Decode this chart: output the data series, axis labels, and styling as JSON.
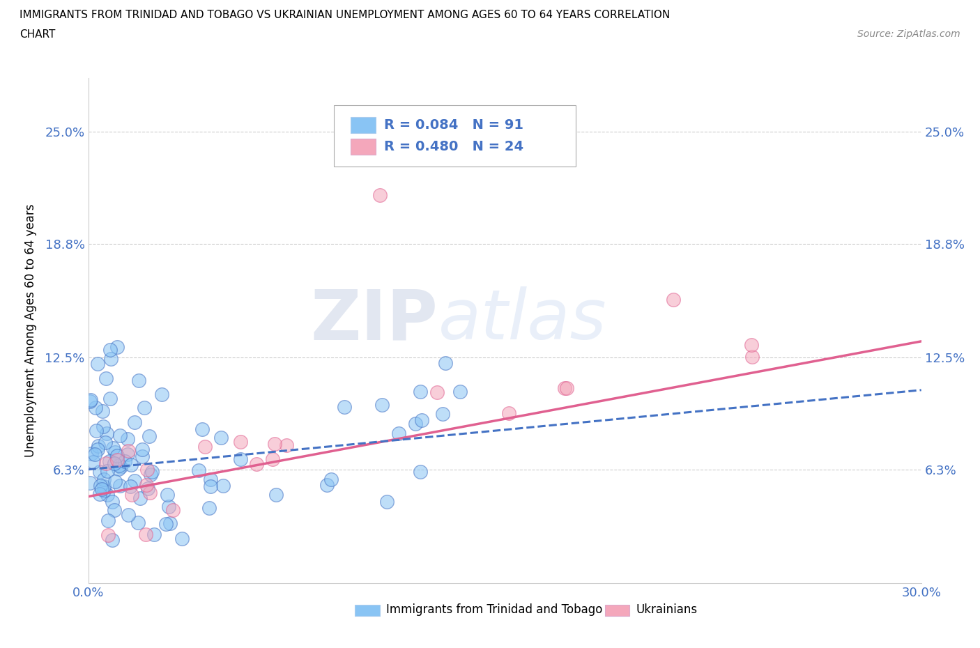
{
  "title_line1": "IMMIGRANTS FROM TRINIDAD AND TOBAGO VS UKRAINIAN UNEMPLOYMENT AMONG AGES 60 TO 64 YEARS CORRELATION",
  "title_line2": "CHART",
  "source": "Source: ZipAtlas.com",
  "ylabel": "Unemployment Among Ages 60 to 64 years",
  "xlim": [
    0.0,
    0.3
  ],
  "ylim": [
    0.0,
    0.28
  ],
  "ytick_positions": [
    0.063,
    0.125,
    0.188,
    0.25
  ],
  "ytick_labels": [
    "6.3%",
    "12.5%",
    "18.8%",
    "25.0%"
  ],
  "r_blue": 0.084,
  "n_blue": 91,
  "r_pink": 0.48,
  "n_pink": 24,
  "color_blue": "#89C4F4",
  "color_pink": "#F4A7BB",
  "color_line_blue": "#4472C4",
  "color_line_pink": "#E06090",
  "color_text_blue": "#4472C4",
  "legend_label_blue": "Immigrants from Trinidad and Tobago",
  "legend_label_pink": "Ukrainians",
  "watermark_zip": "ZIP",
  "watermark_atlas": "atlas",
  "background_color": "#FFFFFF",
  "grid_color": "#CCCCCC",
  "blue_trend_start_y": 0.063,
  "blue_trend_end_y": 0.107,
  "pink_trend_start_y": 0.048,
  "pink_trend_end_y": 0.134
}
